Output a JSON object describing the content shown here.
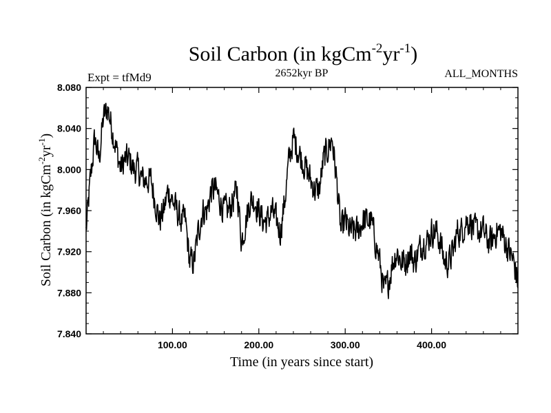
{
  "chart_data": {
    "type": "line",
    "title_main": "Soil Carbon (in kgCm",
    "title_sup1": "-2",
    "title_mid": "yr",
    "title_sup2": "-1",
    "title_end": ")",
    "subtitle": "2652kyr BP",
    "left_label": "Expt = tfMd9",
    "right_label": "ALL_MONTHS",
    "xlabel": "Time (in years since start)",
    "ylabel_main": "Soil Carbon (in kgCm",
    "ylabel_sup1": "-2",
    "ylabel_mid": "yr",
    "ylabel_sup2": "-1",
    "ylabel_end": ")",
    "xlim": [
      0,
      500
    ],
    "ylim": [
      7.84,
      8.08
    ],
    "x_ticks": [
      100,
      200,
      300,
      400
    ],
    "x_tick_labels": [
      "100.00",
      "200.00",
      "300.00",
      "400.00"
    ],
    "y_ticks": [
      7.84,
      7.88,
      7.92,
      7.96,
      8.0,
      8.04,
      8.08
    ],
    "y_tick_labels": [
      "7.840",
      "7.880",
      "7.920",
      "7.960",
      "8.000",
      "8.040",
      "8.080"
    ],
    "series": [
      {
        "name": "Soil Carbon",
        "x": [
          0,
          5,
          10,
          15,
          20,
          25,
          30,
          35,
          40,
          45,
          50,
          55,
          60,
          65,
          70,
          75,
          80,
          85,
          90,
          95,
          100,
          105,
          110,
          115,
          120,
          125,
          130,
          135,
          140,
          145,
          150,
          155,
          160,
          165,
          170,
          175,
          180,
          185,
          190,
          195,
          200,
          205,
          210,
          215,
          220,
          225,
          230,
          235,
          240,
          245,
          250,
          255,
          260,
          265,
          270,
          275,
          280,
          285,
          290,
          295,
          300,
          305,
          310,
          315,
          320,
          325,
          330,
          335,
          340,
          345,
          350,
          355,
          360,
          365,
          370,
          375,
          380,
          385,
          390,
          395,
          400,
          405,
          410,
          415,
          420,
          425,
          430,
          435,
          440,
          445,
          450,
          455,
          460,
          465,
          470,
          475,
          480,
          485,
          490,
          495,
          500
        ],
        "values": [
          7.94,
          7.99,
          8.03,
          8.01,
          8.05,
          8.06,
          8.04,
          8.02,
          8.0,
          8.01,
          8.01,
          8.0,
          8.0,
          7.99,
          7.99,
          7.99,
          7.97,
          7.95,
          7.96,
          7.98,
          7.97,
          7.96,
          7.95,
          7.95,
          7.91,
          7.91,
          7.94,
          7.96,
          7.96,
          7.98,
          7.98,
          7.97,
          7.96,
          7.96,
          7.97,
          7.98,
          7.93,
          7.95,
          7.97,
          7.97,
          7.96,
          7.95,
          7.95,
          7.96,
          7.95,
          7.94,
          7.97,
          8.01,
          8.03,
          8.02,
          8.01,
          8.0,
          7.99,
          7.98,
          7.98,
          8.01,
          8.02,
          8.03,
          7.99,
          7.94,
          7.95,
          7.94,
          7.94,
          7.94,
          7.95,
          7.95,
          7.95,
          7.93,
          7.91,
          7.88,
          7.89,
          7.91,
          7.92,
          7.91,
          7.91,
          7.92,
          7.91,
          7.92,
          7.93,
          7.93,
          7.94,
          7.94,
          7.93,
          7.91,
          7.91,
          7.92,
          7.94,
          7.94,
          7.95,
          7.95,
          7.94,
          7.94,
          7.94,
          7.93,
          7.93,
          7.94,
          7.94,
          7.93,
          7.92,
          7.91,
          7.89
        ]
      }
    ]
  }
}
